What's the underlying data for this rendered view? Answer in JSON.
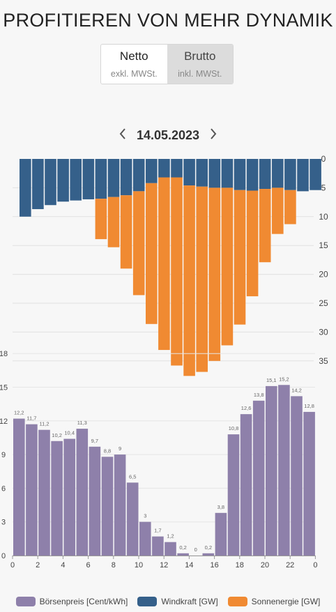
{
  "header": {
    "title": "PROFITIEREN VON MEHR DYNAMIK"
  },
  "toggle": {
    "options": [
      {
        "label": "Netto",
        "sub": "exkl. MWSt."
      },
      {
        "label": "Brutto",
        "sub": "inkl. MWSt."
      }
    ],
    "active": "Brutto"
  },
  "date_nav": {
    "date": "14.05.2023",
    "prev_icon": "chevron-left-icon",
    "next_icon": "chevron-right-icon"
  },
  "colors": {
    "price": "#8e80aa",
    "wind": "#35608a",
    "solar": "#f08a32"
  },
  "legend": [
    {
      "label": "Börsenpreis [Cent/kWh]",
      "color": "#8e80aa"
    },
    {
      "label": "Windkraft [GW]",
      "color": "#35608a"
    },
    {
      "label": "Sonnenergie [GW]",
      "color": "#f08a32"
    }
  ],
  "chart_data": [
    {
      "type": "bar",
      "name": "generation",
      "x": [
        0,
        1,
        2,
        3,
        4,
        5,
        6,
        7,
        8,
        9,
        10,
        11,
        12,
        13,
        14,
        15,
        16,
        17,
        18,
        19,
        20,
        21,
        22,
        23
      ],
      "series": [
        {
          "name": "Windkraft [GW]",
          "values": [
            10,
            8.7,
            8,
            7.4,
            7.2,
            7,
            6.9,
            6.6,
            6.3,
            5.6,
            4.2,
            3.2,
            3.2,
            4.6,
            4.8,
            5,
            5,
            5.4,
            5.5,
            5.2,
            5,
            5.4,
            5.6,
            5.4
          ]
        },
        {
          "name": "Sonnenergie [GW]",
          "values": [
            0,
            0,
            0,
            0,
            0,
            0,
            7,
            8.7,
            12.7,
            18,
            24.4,
            29.9,
            32.6,
            33,
            32.1,
            30,
            27.3,
            23.3,
            18.3,
            12.7,
            8,
            5.9,
            0,
            0
          ]
        }
      ],
      "y_axis": {
        "ticks": [
          0,
          5,
          10,
          15,
          20,
          25,
          30,
          35
        ],
        "range": [
          0,
          35
        ],
        "inverted": true,
        "side": "right"
      },
      "grid": true
    },
    {
      "type": "bar",
      "name": "price",
      "series_name": "Börsenpreis [Cent/kWh]",
      "categories": [
        0,
        1,
        2,
        3,
        4,
        5,
        6,
        7,
        8,
        9,
        10,
        11,
        12,
        13,
        14,
        15,
        16,
        17,
        18,
        19,
        20,
        21,
        22,
        23
      ],
      "values": [
        12.2,
        11.7,
        11.2,
        10.2,
        10.4,
        11.3,
        9.7,
        8.8,
        9,
        6.5,
        3,
        1.7,
        1.2,
        0.2,
        0,
        0.2,
        3.8,
        10.8,
        12.6,
        13.8,
        15.1,
        15.2,
        14.2,
        12.8
      ],
      "value_labels": [
        "12,2",
        "11,7",
        "11,2",
        "10,2",
        "10,4",
        "11,3",
        "9,7",
        "8,8",
        "9",
        "6,5",
        "3",
        "1,7",
        "1,2",
        "0,2",
        "0",
        "0,2",
        "3,8",
        "10,8",
        "12,6",
        "13,8",
        "15,1",
        "15,2",
        "14,2",
        "12,8"
      ],
      "y_axis": {
        "ticks": [
          "0",
          "3",
          "6",
          "9",
          "12",
          "15",
          "18"
        ],
        "range": [
          0,
          18
        ]
      },
      "x_axis": {
        "ticks": [
          "0",
          "2",
          "4",
          "6",
          "8",
          "10",
          "12",
          "14",
          "16",
          "18",
          "20",
          "22",
          "0"
        ]
      },
      "grid": true
    }
  ]
}
